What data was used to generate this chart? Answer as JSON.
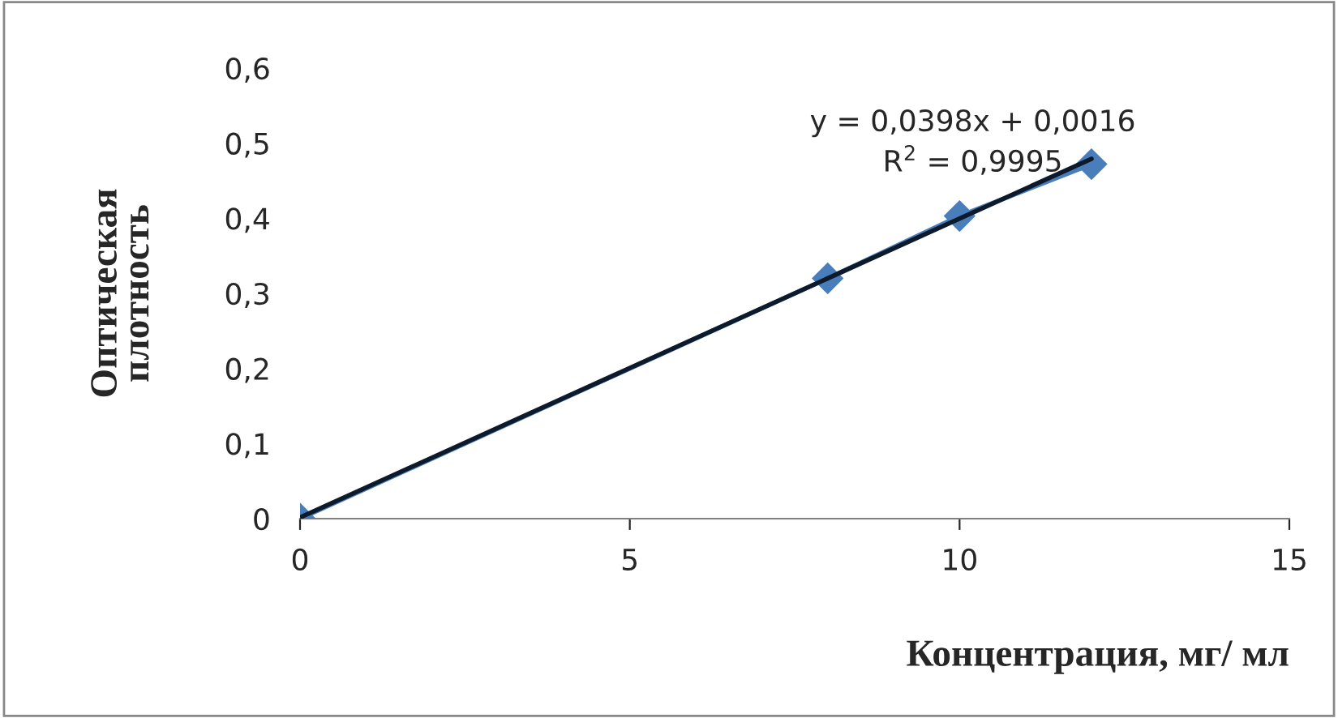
{
  "chart_data": {
    "type": "line",
    "xlabel": "Концентрация, мг/ мл",
    "ylabel": "Оптическая\nплотность",
    "xlim": [
      0,
      15
    ],
    "xticks": [
      0,
      5,
      10,
      15
    ],
    "ylim": [
      0,
      0.6
    ],
    "yticks": [
      {
        "value": 0,
        "label": "0"
      },
      {
        "value": 0.1,
        "label": "0,1"
      },
      {
        "value": 0.2,
        "label": "0,2"
      },
      {
        "value": 0.3,
        "label": "0,3"
      },
      {
        "value": 0.4,
        "label": "0,4"
      },
      {
        "value": 0.5,
        "label": "0,5"
      },
      {
        "value": 0.6,
        "label": "0,6"
      }
    ],
    "grid": false,
    "legend": false,
    "annotations": [
      "y = 0,0398x + 0,0016",
      "R$^{2}$ = 0,9995"
    ],
    "series": [
      {
        "x": [
          0,
          8,
          10,
          12
        ],
        "values": [
          0,
          0.32,
          0.403,
          0.472
        ],
        "color": "#4a7ebb",
        "marker": "diamond",
        "line_style": "solid"
      },
      {
        "x": [
          0,
          12
        ],
        "values": [
          0.0016,
          0.4792
        ],
        "color": "#0d1a2b",
        "marker": "none",
        "line_style": "solid"
      }
    ]
  }
}
